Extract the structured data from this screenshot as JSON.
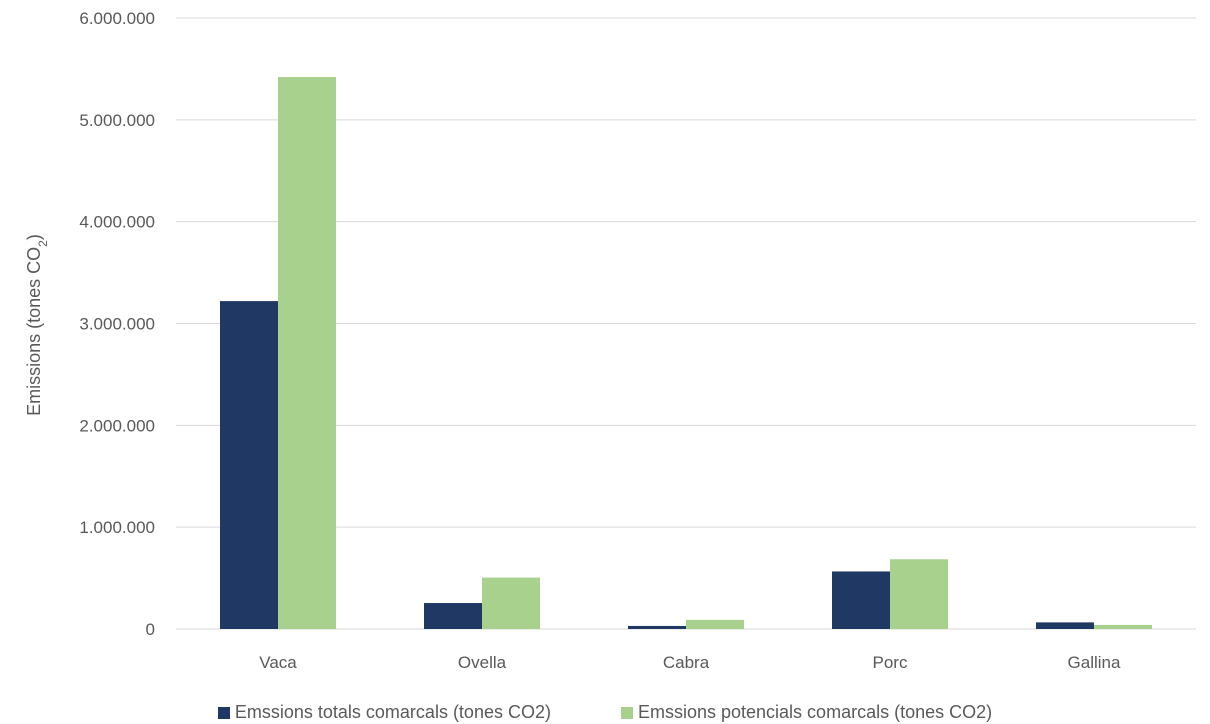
{
  "chart_data": {
    "type": "bar",
    "categories": [
      "Vaca",
      "Ovella",
      "Cabra",
      "Porc",
      "Gallina"
    ],
    "series": [
      {
        "name": "Emssions totals comarcals (tones CO2)",
        "color": "#203864",
        "values": [
          3220000,
          255000,
          30000,
          565000,
          65000
        ]
      },
      {
        "name": "Emssions potencials comarcals (tones CO2)",
        "color": "#A9D18E",
        "values": [
          5420000,
          505000,
          90000,
          685000,
          40000
        ]
      }
    ],
    "ylabel_main": "Emissions (tones CO",
    "ylabel_sub": "2",
    "ylabel_end": ")",
    "ylim": [
      0,
      6000000
    ],
    "yticks": [
      "0",
      "1.000.000",
      "2.000.000",
      "3.000.000",
      "4.000.000",
      "5.000.000",
      "6.000.000"
    ],
    "grid": true,
    "gridcolor": "#D9D9D9",
    "legend_position": "bottom"
  }
}
